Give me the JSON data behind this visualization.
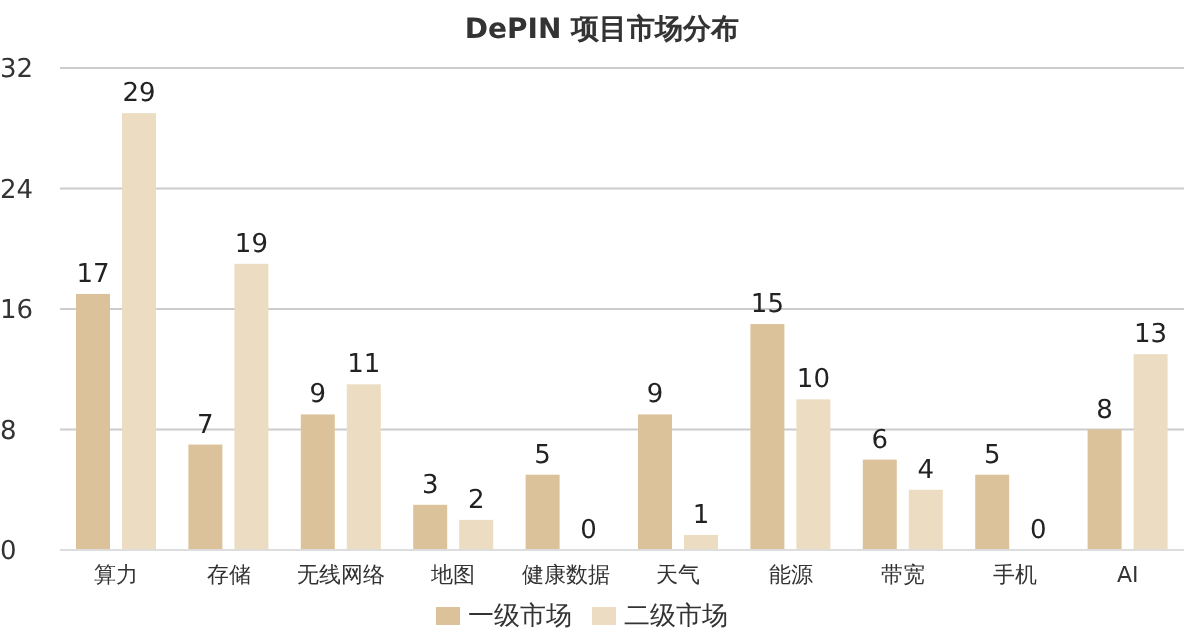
{
  "chart_data": {
    "type": "bar",
    "title": "DePIN 项目市场分布",
    "categories": [
      "算力",
      "存储",
      "无线网络",
      "地图",
      "健康数据",
      "天气",
      "能源",
      "带宽",
      "手机",
      "AI"
    ],
    "series": [
      {
        "name": "一级市场",
        "color": "#dcc29b",
        "values": [
          17,
          7,
          9,
          3,
          5,
          9,
          15,
          6,
          5,
          8
        ]
      },
      {
        "name": "二级市场",
        "color": "#ebdcc2",
        "values": [
          29,
          19,
          11,
          2,
          0,
          1,
          10,
          4,
          0,
          13
        ]
      }
    ],
    "ylim": [
      0,
      32
    ],
    "yticks": [
      0,
      8,
      16,
      24,
      32
    ],
    "grid": "y",
    "legend": "bottom",
    "data_labels": true
  }
}
